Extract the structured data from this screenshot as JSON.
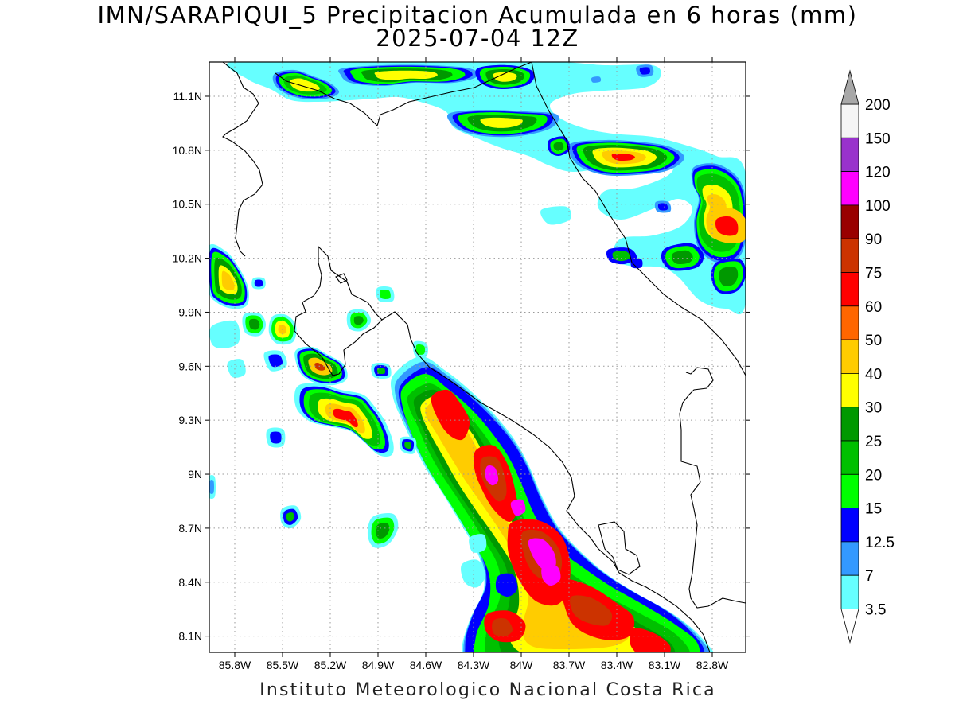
{
  "title": {
    "line1": "IMN/SARAPIQUI_5 Precipitacion Acumulada en 6 horas (mm)",
    "line2": "2025-07-04 12Z"
  },
  "footer": "Instituto Meteorologico Nacional Costa Rica",
  "axes": {
    "lat_labels": [
      "11.1N",
      "10.8N",
      "10.5N",
      "10.2N",
      "9.9N",
      "9.6N",
      "9.3N",
      "9N",
      "8.7N",
      "8.4N",
      "8.1N"
    ],
    "lon_labels": [
      "85.8W",
      "85.5W",
      "85.2W",
      "84.9W",
      "84.6W",
      "84.3W",
      "84W",
      "83.7W",
      "83.4W",
      "83.1W",
      "82.8W"
    ],
    "lat_values": [
      11.1,
      10.8,
      10.5,
      10.2,
      9.9,
      9.6,
      9.3,
      9.0,
      8.7,
      8.4,
      8.1
    ],
    "lon_values": [
      -85.8,
      -85.5,
      -85.2,
      -84.9,
      -84.6,
      -84.3,
      -84.0,
      -83.7,
      -83.4,
      -83.1,
      -82.8
    ],
    "grid": "dotted"
  },
  "colorbar": {
    "labels": [
      "200",
      "150",
      "120",
      "100",
      "90",
      "75",
      "60",
      "50",
      "40",
      "30",
      "25",
      "20",
      "15",
      "12.5",
      "7",
      "3.5"
    ],
    "colors": [
      "#f5f5f5",
      "#9932cc",
      "#ff00ff",
      "#990000",
      "#cc3300",
      "#ff0000",
      "#ff6600",
      "#ffcc00",
      "#ffff00",
      "#009900",
      "#00c000",
      "#00ff00",
      "#0000ff",
      "#3399ff",
      "#66ffff"
    ],
    "top_triangle_color": "#a8a8a8",
    "bottom_triangle_color": "#ffffff"
  },
  "precip_colors": {
    "c3_5": "#66ffff",
    "c7": "#3399ff",
    "c12_5": "#0000ff",
    "c15": "#00ff00",
    "c20": "#00c000",
    "c25": "#009900",
    "c30": "#ffff00",
    "c40": "#ffcc00",
    "c60": "#ff0000",
    "c90": "#cc3300",
    "c100": "#990000",
    "c120": "#ff00ff"
  }
}
